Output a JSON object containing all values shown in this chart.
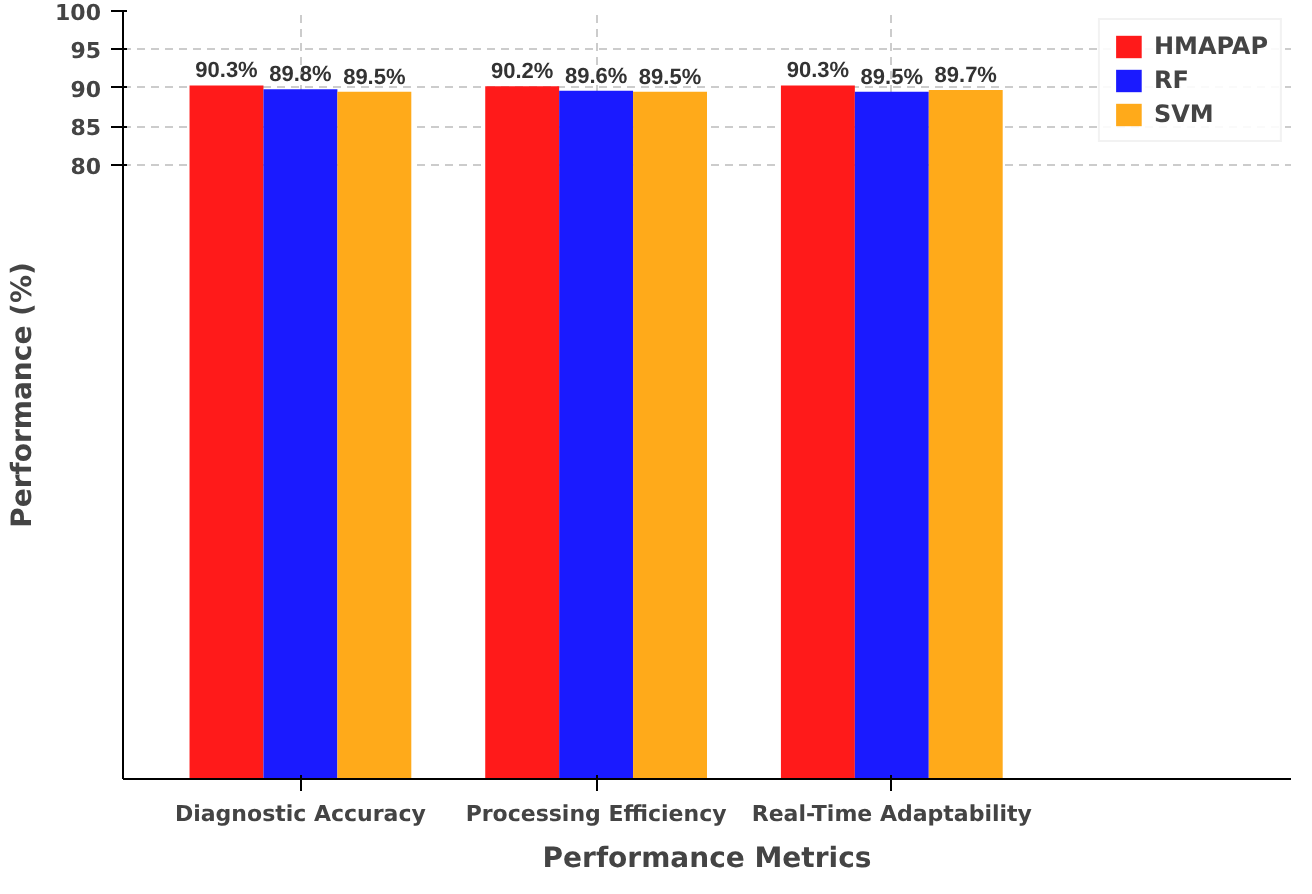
{
  "chart_data": {
    "type": "bar",
    "xlabel": "Performance Metrics",
    "ylabel": "Performance (%)",
    "categories": [
      "Diagnostic Accuracy",
      "Processing Efficiency",
      "Real-Time Adaptability"
    ],
    "series": [
      {
        "name": "HMAPAP",
        "color": "#ff1a1a",
        "values": [
          90.3,
          90.2,
          90.3
        ],
        "value_labels": [
          "90.3%",
          "90.2%",
          "90.3%"
        ]
      },
      {
        "name": "RF",
        "color": "#1a1aff",
        "values": [
          89.8,
          89.6,
          89.5
        ],
        "value_labels": [
          "89.8%",
          "89.6%",
          "89.5%"
        ]
      },
      {
        "name": "SVM",
        "color": "#ffaa1a",
        "values": [
          89.5,
          89.5,
          89.7
        ],
        "value_labels": [
          "89.5%",
          "89.5%",
          "89.7%"
        ]
      }
    ],
    "ylim": [
      0,
      100
    ],
    "yticks": [
      80,
      85,
      90,
      95,
      100
    ],
    "grid": true,
    "legend": "top right"
  }
}
